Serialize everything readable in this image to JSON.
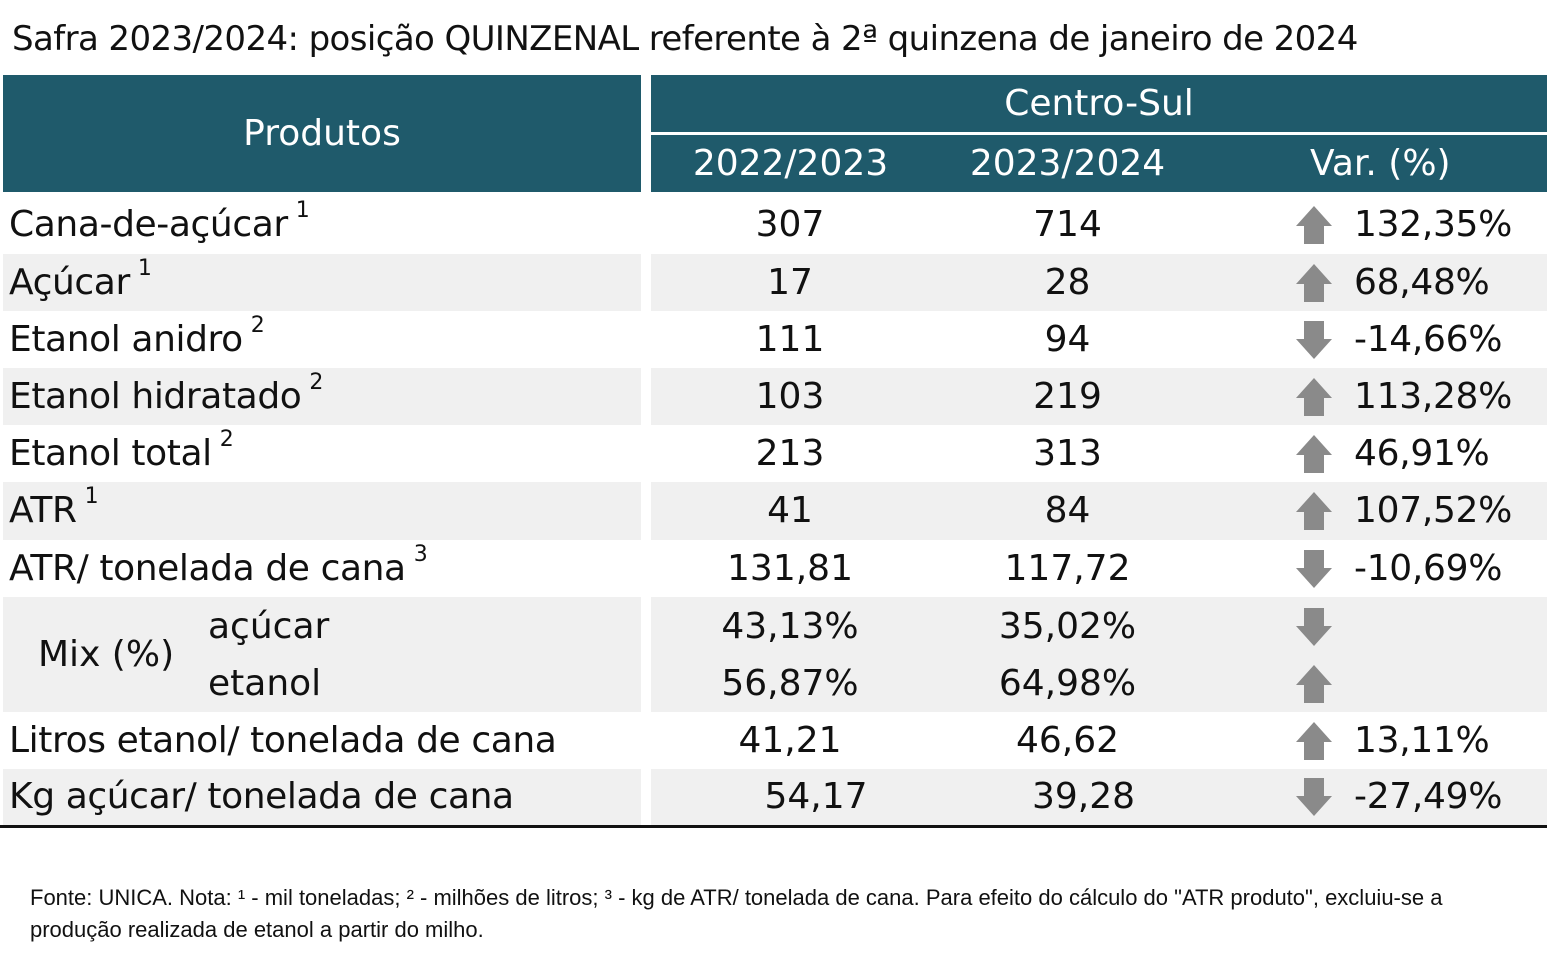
{
  "title": "Safra 2023/2024: posição QUINZENAL referente à 2ª quinzena de janeiro de 2024",
  "header": {
    "products": "Produtos",
    "region": "Centro-Sul",
    "col1": "2022/2023",
    "col2": "2023/2024",
    "col3": "Var. (%)"
  },
  "rows": [
    {
      "label": "Cana-de-açúcar",
      "sup": "1",
      "v1": "307",
      "v2": "714",
      "trend": "up",
      "var": "132,35%"
    },
    {
      "label": "Açúcar",
      "sup": "1",
      "v1": "17",
      "v2": "28",
      "trend": "up",
      "var": "68,48%"
    },
    {
      "label": "Etanol anidro",
      "sup": "2",
      "v1": "111",
      "v2": "94",
      "trend": "down",
      "var": "-14,66%"
    },
    {
      "label": "Etanol hidratado",
      "sup": "2",
      "v1": "103",
      "v2": "219",
      "trend": "up",
      "var": "113,28%"
    },
    {
      "label": "Etanol total",
      "sup": "2",
      "v1": "213",
      "v2": "313",
      "trend": "up",
      "var": "46,91%"
    },
    {
      "label": "ATR",
      "sup": "1",
      "v1": "41",
      "v2": "84",
      "trend": "up",
      "var": "107,52%"
    },
    {
      "label": "ATR/ tonelada de cana",
      "sup": "3",
      "v1": "131,81",
      "v2": "117,72",
      "trend": "down",
      "var": "-10,69%"
    }
  ],
  "mix": {
    "label": "Mix (%)",
    "sugar": {
      "label": "açúcar",
      "v1": "43,13%",
      "v2": "35,02%",
      "trend": "down"
    },
    "ethanol": {
      "label": "etanol",
      "v1": "56,87%",
      "v2": "64,98%",
      "trend": "up"
    }
  },
  "rows_bottom": [
    {
      "label": "Litros etanol/ tonelada de cana",
      "v1": "41,21",
      "v2": "46,62",
      "trend": "up",
      "var": "13,11%"
    },
    {
      "label": "Kg açúcar/ tonelada de cana",
      "v1": "54,17",
      "v2": "39,28",
      "trend": "down",
      "var": "-27,49%"
    }
  ],
  "colors": {
    "header": "#1f5a6b",
    "band": "#f0f0f0",
    "arrow": "#8a8a8a"
  },
  "icons": {
    "up": "arrow-up-icon",
    "down": "arrow-down-icon"
  },
  "note": "Fonte: UNICA. Nota: ¹ - mil toneladas; ² - milhões de litros; ³ - kg de ATR/ tonelada de cana. Para efeito do cálculo do \"ATR produto\", excluiu-se a produção realizada de etanol a partir do milho."
}
